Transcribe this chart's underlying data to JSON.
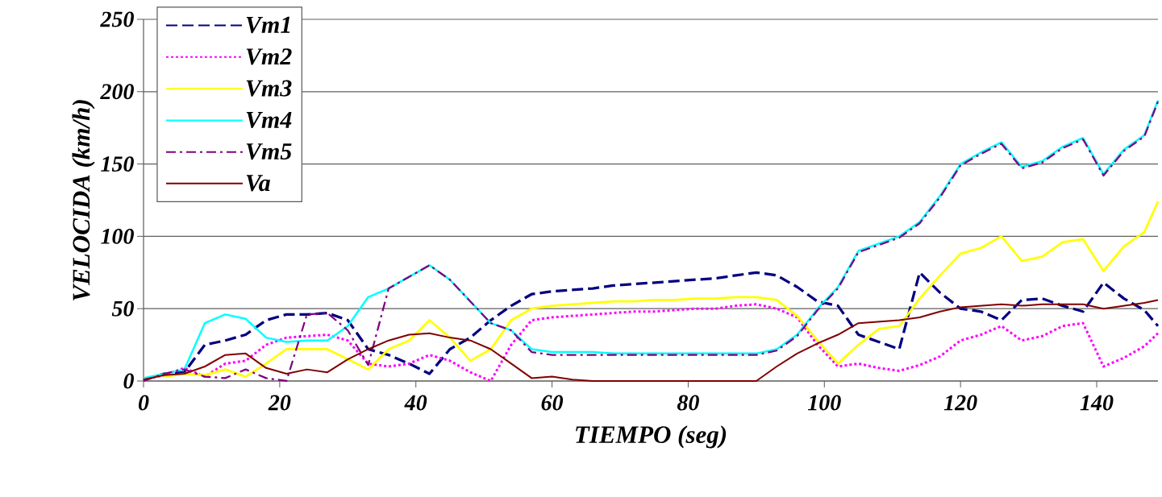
{
  "chart_data": {
    "type": "line",
    "xlabel": "TIEMPO (seg)",
    "ylabel": "VELOCIDA (km/h)",
    "x": [
      0,
      3,
      6,
      9,
      12,
      15,
      18,
      21,
      24,
      27,
      30,
      33,
      36,
      39,
      42,
      45,
      48,
      51,
      54,
      57,
      60,
      63,
      66,
      69,
      72,
      75,
      78,
      81,
      84,
      87,
      90,
      93,
      96,
      99,
      102,
      105,
      108,
      111,
      114,
      117,
      120,
      123,
      126,
      129,
      132,
      135,
      138,
      141,
      144,
      147,
      149
    ],
    "series": [
      {
        "name": "Vm1",
        "color": "#000080",
        "line_style": "dashed",
        "values": [
          1,
          5,
          6,
          25,
          28,
          32,
          42,
          46,
          46,
          47,
          42,
          22,
          18,
          12,
          5,
          22,
          30,
          42,
          52,
          60,
          62,
          63,
          64,
          66,
          67,
          68,
          69,
          70,
          71,
          73,
          75,
          73,
          65,
          55,
          52,
          32,
          27,
          22,
          75,
          61,
          50,
          48,
          42,
          56,
          57,
          52,
          48,
          68,
          57,
          49,
          38
        ]
      },
      {
        "name": "Vm2",
        "color": "#ff00ff",
        "line_style": "dotted",
        "values": [
          1,
          4,
          9,
          3,
          12,
          14,
          25,
          30,
          31,
          32,
          28,
          12,
          10,
          12,
          18,
          14,
          6,
          0,
          25,
          42,
          44,
          45,
          46,
          47,
          48,
          48,
          49,
          50,
          50,
          52,
          53,
          50,
          44,
          25,
          10,
          12,
          9,
          7,
          11,
          17,
          28,
          32,
          38,
          28,
          31,
          38,
          40,
          10,
          16,
          24,
          33
        ]
      },
      {
        "name": "Vm3",
        "color": "#ffff00",
        "line_style": "solid",
        "values": [
          null,
          3,
          5,
          4,
          8,
          3,
          12,
          22,
          22,
          22,
          15,
          8,
          22,
          28,
          42,
          30,
          14,
          22,
          42,
          50,
          52,
          53,
          54,
          55,
          55,
          56,
          56,
          57,
          57,
          58,
          58,
          56,
          45,
          28,
          12,
          25,
          36,
          38,
          57,
          73,
          88,
          92,
          100,
          83,
          86,
          96,
          98,
          76,
          93,
          103,
          124
        ]
      },
      {
        "name": "Vm4",
        "color": "#00ffff",
        "line_style": "solid",
        "values": [
          2,
          5,
          8,
          40,
          46,
          43,
          30,
          27,
          28,
          28,
          38,
          58,
          64,
          72,
          80,
          70,
          55,
          40,
          35,
          22,
          20,
          20,
          20,
          19,
          19,
          19,
          19,
          19,
          19,
          19,
          19,
          22,
          32,
          50,
          65,
          90,
          95,
          100,
          110,
          128,
          150,
          158,
          165,
          148,
          152,
          162,
          168,
          143,
          160,
          170,
          194
        ]
      },
      {
        "name": "Vm5",
        "color": "#800080",
        "line_style": "dashdot",
        "values": [
          0,
          5,
          8,
          3,
          2,
          8,
          2,
          0,
          46,
          47,
          35,
          11,
          64,
          72,
          80,
          70,
          55,
          40,
          35,
          20,
          18,
          18,
          18,
          18,
          18,
          18,
          18,
          18,
          18,
          18,
          18,
          21,
          31,
          49,
          64,
          89,
          94,
          99,
          109,
          127,
          149,
          157,
          164,
          147,
          151,
          161,
          167,
          142,
          159,
          169,
          193
        ]
      },
      {
        "name": "Va",
        "color": "#800000",
        "line_style": "solid",
        "values": [
          1,
          4,
          5,
          10,
          18,
          19,
          9,
          5,
          8,
          6,
          15,
          22,
          28,
          32,
          33,
          30,
          28,
          22,
          12,
          2,
          3,
          1,
          0,
          0,
          0,
          0,
          0,
          0,
          0,
          0,
          0,
          10,
          19,
          26,
          32,
          40,
          41,
          42,
          44,
          48,
          51,
          52,
          53,
          52,
          53,
          53,
          53,
          50,
          52,
          54,
          56
        ]
      }
    ],
    "xlim": [
      0,
      149
    ],
    "xticks": [
      0,
      20,
      40,
      60,
      80,
      100,
      120,
      140
    ],
    "ylim": [
      0,
      250
    ],
    "yticks": [
      0,
      50,
      100,
      150,
      200,
      250
    ],
    "grid": "y",
    "legend": "top left",
    "marker": "none"
  }
}
